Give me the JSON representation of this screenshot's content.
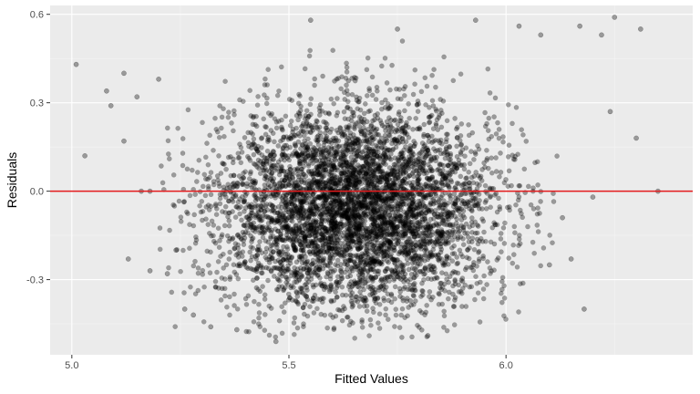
{
  "colors": {
    "panel_background": "#ebebeb",
    "major_grid": "#ffffff",
    "minor_grid": "#f5f5f5",
    "point_fill": "#000000",
    "reference_line": "#e31a1c",
    "tick_mark": "#333333"
  },
  "chart_data": {
    "type": "scatter",
    "title": "",
    "xlabel": "Fitted Values",
    "ylabel": "Residuals",
    "xlim": [
      4.95,
      6.43
    ],
    "ylim": [
      -0.555,
      0.63
    ],
    "x_ticks": [
      {
        "value": 5.0,
        "label": "5.0"
      },
      {
        "value": 5.5,
        "label": "5.5"
      },
      {
        "value": 6.0,
        "label": "6.0"
      }
    ],
    "y_ticks": [
      {
        "value": -0.3,
        "label": "-0.3"
      },
      {
        "value": 0.0,
        "label": "0.0"
      },
      {
        "value": 0.3,
        "label": "0.3"
      },
      {
        "value": 0.6,
        "label": "0.6"
      }
    ],
    "grid": true,
    "reference_line": {
      "axis": "y",
      "value": 0.0
    },
    "point_style": {
      "shape": "circle",
      "alpha": 0.35
    },
    "points": [
      {
        "x": 5.01,
        "y": 0.43
      },
      {
        "x": 5.03,
        "y": 0.12
      },
      {
        "x": 5.08,
        "y": 0.34
      },
      {
        "x": 5.09,
        "y": 0.29
      },
      {
        "x": 5.12,
        "y": 0.4
      },
      {
        "x": 5.12,
        "y": 0.17
      },
      {
        "x": 5.13,
        "y": -0.23
      },
      {
        "x": 5.15,
        "y": 0.32
      },
      {
        "x": 5.16,
        "y": 0.0
      },
      {
        "x": 5.18,
        "y": 0.0
      },
      {
        "x": 5.18,
        "y": -0.27
      },
      {
        "x": 5.2,
        "y": 0.38
      },
      {
        "x": 5.22,
        "y": -0.28
      },
      {
        "x": 5.24,
        "y": -0.2
      },
      {
        "x": 5.26,
        "y": -0.4
      },
      {
        "x": 5.28,
        "y": -0.42
      },
      {
        "x": 5.32,
        "y": -0.46
      },
      {
        "x": 5.38,
        "y": -0.47
      },
      {
        "x": 5.47,
        "y": -0.51
      },
      {
        "x": 5.55,
        "y": 0.58
      },
      {
        "x": 5.75,
        "y": 0.55
      },
      {
        "x": 5.82,
        "y": -0.49
      },
      {
        "x": 5.93,
        "y": 0.58
      },
      {
        "x": 6.03,
        "y": 0.56
      },
      {
        "x": 6.08,
        "y": 0.53
      },
      {
        "x": 6.1,
        "y": -0.25
      },
      {
        "x": 6.13,
        "y": -0.09
      },
      {
        "x": 6.15,
        "y": -0.23
      },
      {
        "x": 6.17,
        "y": 0.56
      },
      {
        "x": 6.18,
        "y": -0.4
      },
      {
        "x": 6.2,
        "y": -0.02
      },
      {
        "x": 6.22,
        "y": 0.53
      },
      {
        "x": 6.24,
        "y": 0.27
      },
      {
        "x": 6.25,
        "y": 0.59
      },
      {
        "x": 6.3,
        "y": 0.18
      },
      {
        "x": 6.31,
        "y": 0.55
      },
      {
        "x": 6.35,
        "y": 0.0
      }
    ],
    "density_summary": "Dense cloud of thousands of points centered near fitted 5.65, residual -0.05; fitted values span about 5.0 to 6.35 and residuals about -0.51 to 0.59"
  }
}
